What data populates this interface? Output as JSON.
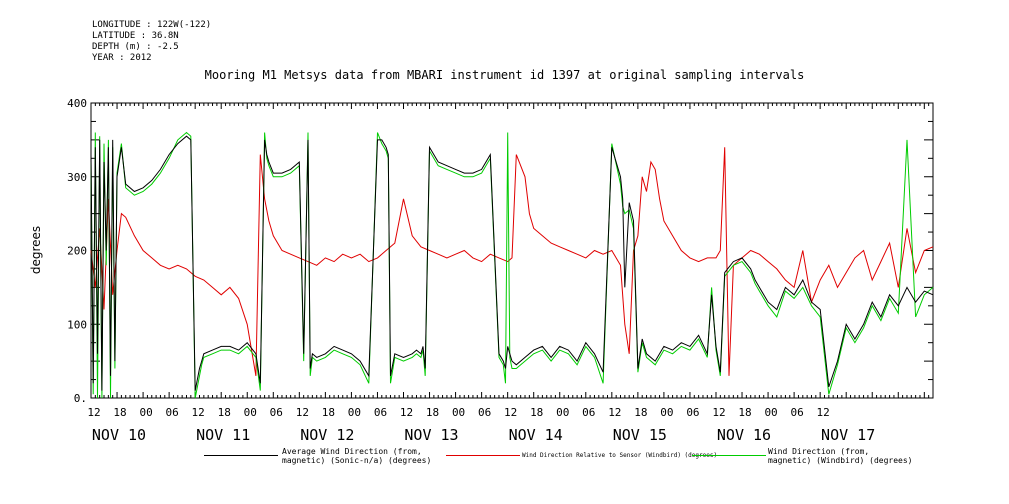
{
  "header": {
    "longitude": "LONGITUDE : 122W(-122)",
    "latitude": "LATITUDE : 36.8N",
    "depth": "DEPTH (m) : -2.5",
    "year": "YEAR : 2012"
  },
  "chart_data": {
    "type": "line",
    "title": "Mooring M1 Metsys data from MBARI instrument id 1397 at original sampling intervals",
    "ylabel": "degrees",
    "xlabel": "",
    "ylim": [
      0,
      400
    ],
    "y_ticks": [
      "0.",
      "100",
      "200",
      "300",
      "400"
    ],
    "x_range_hours": [
      0,
      194
    ],
    "x_hour_ticks": [
      "12",
      "18",
      "00",
      "06",
      "12",
      "18",
      "00",
      "06",
      "12",
      "18",
      "00",
      "06",
      "12",
      "18",
      "00",
      "06",
      "12",
      "18",
      "00",
      "06",
      "12",
      "18",
      "00",
      "06",
      "12",
      "18",
      "00",
      "06",
      "12"
    ],
    "x_day_labels": [
      "NOV 10",
      "NOV 11",
      "NOV 12",
      "NOV 13",
      "NOV 14",
      "NOV 15",
      "NOV 16",
      "NOV 17"
    ],
    "colors": {
      "black": "#000000",
      "red": "#e00000",
      "green": "#00cc00"
    },
    "series": [
      {
        "name": "Average Wind Direction (from, magnetic) (Sonic-n/a) (degrees)",
        "color": "#000000",
        "x": [
          0,
          0.5,
          1,
          1.5,
          2,
          2.5,
          3,
          3.5,
          4,
          4.5,
          5,
          5.5,
          6,
          7,
          8,
          10,
          12,
          14,
          16,
          18,
          20,
          22,
          23,
          24,
          25,
          25.5,
          26,
          28,
          30,
          32,
          34,
          36,
          38,
          39,
          40,
          40.5,
          41,
          42,
          44,
          46,
          48,
          49,
          50,
          50.5,
          51,
          52,
          54,
          56,
          58,
          60,
          62,
          64,
          66,
          67,
          68,
          68.5,
          69,
          70,
          72,
          74,
          75,
          76,
          76.5,
          77,
          78,
          80,
          82,
          84,
          86,
          88,
          90,
          92,
          94,
          95,
          95.5,
          96,
          96.5,
          97,
          98,
          100,
          102,
          104,
          106,
          108,
          110,
          112,
          114,
          116,
          118,
          120,
          122,
          122.5,
          123,
          124,
          125,
          126,
          127,
          128,
          130,
          132,
          134,
          136,
          138,
          140,
          142,
          143,
          144,
          145,
          146,
          148,
          150,
          152,
          153,
          154,
          156,
          158,
          160,
          162,
          164,
          166,
          168,
          170,
          172,
          174,
          176,
          178,
          180,
          182,
          184,
          186,
          188,
          190,
          192,
          194
        ],
        "values": [
          330,
          20,
          340,
          60,
          350,
          10,
          320,
          200,
          340,
          30,
          350,
          50,
          300,
          340,
          290,
          280,
          285,
          295,
          310,
          330,
          345,
          355,
          350,
          10,
          40,
          50,
          60,
          65,
          70,
          70,
          65,
          75,
          60,
          20,
          350,
          330,
          320,
          305,
          305,
          310,
          320,
          60,
          350,
          40,
          60,
          55,
          60,
          70,
          65,
          60,
          50,
          30,
          350,
          350,
          340,
          330,
          30,
          60,
          55,
          60,
          65,
          60,
          70,
          40,
          340,
          320,
          315,
          310,
          305,
          305,
          310,
          330,
          60,
          50,
          40,
          70,
          60,
          50,
          45,
          55,
          65,
          70,
          55,
          70,
          65,
          50,
          75,
          60,
          35,
          340,
          300,
          270,
          150,
          265,
          240,
          40,
          80,
          60,
          50,
          70,
          65,
          75,
          70,
          85,
          60,
          140,
          70,
          35,
          170,
          185,
          190,
          175,
          160,
          150,
          130,
          120,
          150,
          140,
          160,
          130,
          120,
          15,
          50,
          100,
          80,
          100,
          130,
          110,
          140,
          125,
          150,
          130,
          145,
          140
        ]
      },
      {
        "name": "Wind Direction Relative to Sensor (Windbird) (degrees)",
        "color": "#e00000",
        "x": [
          0,
          1,
          2,
          3,
          4,
          5,
          6,
          7,
          8,
          10,
          12,
          14,
          16,
          18,
          20,
          22,
          24,
          26,
          28,
          30,
          32,
          34,
          36,
          38,
          38.5,
          39,
          40,
          41,
          42,
          44,
          46,
          48,
          50,
          52,
          54,
          56,
          58,
          60,
          62,
          64,
          66,
          68,
          70,
          72,
          74,
          76,
          78,
          80,
          82,
          84,
          86,
          88,
          90,
          92,
          94,
          96,
          97,
          98,
          100,
          101,
          102,
          104,
          106,
          108,
          110,
          112,
          114,
          116,
          118,
          120,
          122,
          123,
          124,
          125,
          126,
          127,
          128,
          129,
          130,
          131,
          132,
          134,
          136,
          138,
          140,
          142,
          144,
          145,
          146,
          147,
          148,
          150,
          152,
          154,
          156,
          158,
          160,
          162,
          164,
          166,
          168,
          170,
          172,
          174,
          176,
          178,
          180,
          182,
          184,
          186,
          188,
          190,
          192,
          194
        ],
        "values": [
          200,
          150,
          230,
          120,
          270,
          140,
          200,
          250,
          245,
          220,
          200,
          190,
          180,
          175,
          180,
          175,
          165,
          160,
          150,
          140,
          150,
          135,
          100,
          30,
          180,
          330,
          270,
          240,
          220,
          200,
          195,
          190,
          185,
          180,
          190,
          185,
          195,
          190,
          195,
          185,
          190,
          200,
          210,
          270,
          220,
          205,
          200,
          195,
          190,
          195,
          200,
          190,
          185,
          195,
          190,
          185,
          190,
          330,
          300,
          250,
          230,
          220,
          210,
          205,
          200,
          195,
          190,
          200,
          195,
          200,
          180,
          100,
          60,
          200,
          220,
          300,
          280,
          320,
          310,
          270,
          240,
          220,
          200,
          190,
          185,
          190,
          190,
          200,
          340,
          30,
          180,
          190,
          200,
          195,
          185,
          175,
          160,
          150,
          200,
          130,
          160,
          180,
          150,
          170,
          190,
          200,
          160,
          185,
          210,
          150,
          230,
          170,
          200,
          205
        ]
      },
      {
        "name": "Wind Direction (from, magnetic) (Windbird) (degrees)",
        "color": "#00cc00",
        "x": [
          0,
          0.5,
          1,
          1.5,
          2,
          2.5,
          3,
          3.5,
          4,
          4.5,
          5,
          5.5,
          6,
          7,
          8,
          10,
          12,
          14,
          16,
          18,
          20,
          22,
          23,
          24,
          25,
          25.5,
          26,
          28,
          30,
          32,
          34,
          36,
          38,
          39,
          40,
          40.5,
          41,
          42,
          44,
          46,
          48,
          49,
          50,
          50.5,
          51,
          52,
          54,
          56,
          58,
          60,
          62,
          64,
          66,
          67,
          68,
          68.5,
          69,
          70,
          72,
          74,
          75,
          76,
          76.5,
          77,
          78,
          80,
          82,
          84,
          86,
          88,
          90,
          92,
          94,
          95,
          95.5,
          96,
          96.5,
          97,
          98,
          100,
          102,
          104,
          106,
          108,
          110,
          112,
          114,
          116,
          118,
          120,
          122,
          122.5,
          123,
          124,
          125,
          126,
          127,
          128,
          130,
          132,
          134,
          136,
          138,
          140,
          142,
          143,
          144,
          145,
          146,
          148,
          150,
          152,
          153,
          154,
          156,
          158,
          160,
          162,
          164,
          166,
          168,
          170,
          172,
          174,
          176,
          178,
          180,
          182,
          184,
          186,
          188,
          190,
          192,
          194
        ],
        "values": [
          320,
          5,
          360,
          0,
          355,
          0,
          345,
          180,
          350,
          0,
          340,
          40,
          305,
          345,
          285,
          275,
          280,
          290,
          305,
          325,
          350,
          360,
          355,
          0,
          30,
          45,
          55,
          60,
          65,
          65,
          60,
          70,
          55,
          10,
          360,
          325,
          315,
          300,
          300,
          305,
          315,
          50,
          360,
          30,
          55,
          50,
          55,
          65,
          60,
          55,
          45,
          20,
          360,
          345,
          335,
          325,
          20,
          55,
          50,
          55,
          60,
          55,
          65,
          30,
          335,
          315,
          310,
          305,
          300,
          300,
          305,
          325,
          55,
          45,
          20,
          360,
          55,
          40,
          40,
          50,
          60,
          65,
          50,
          65,
          60,
          45,
          70,
          55,
          20,
          345,
          290,
          260,
          250,
          255,
          230,
          35,
          75,
          55,
          45,
          65,
          60,
          70,
          65,
          80,
          55,
          150,
          65,
          30,
          165,
          180,
          185,
          170,
          155,
          145,
          125,
          110,
          145,
          135,
          150,
          125,
          110,
          5,
          45,
          95,
          75,
          95,
          125,
          105,
          135,
          115,
          350,
          110,
          140,
          150
        ]
      }
    ],
    "legend": {
      "placement": "bottom",
      "entries": [
        {
          "line1": "Average Wind Direction (from,",
          "line2": "magnetic) (Sonic-n/a) (degrees)",
          "color": "#000000"
        },
        {
          "line1": "Wind Direction Relative to Sensor (Windbird) (degrees)",
          "line2": "",
          "color": "#e00000"
        },
        {
          "line1": "Wind Direction (from,",
          "line2": "magnetic) (Windbird) (degrees)",
          "color": "#00cc00"
        }
      ]
    }
  }
}
